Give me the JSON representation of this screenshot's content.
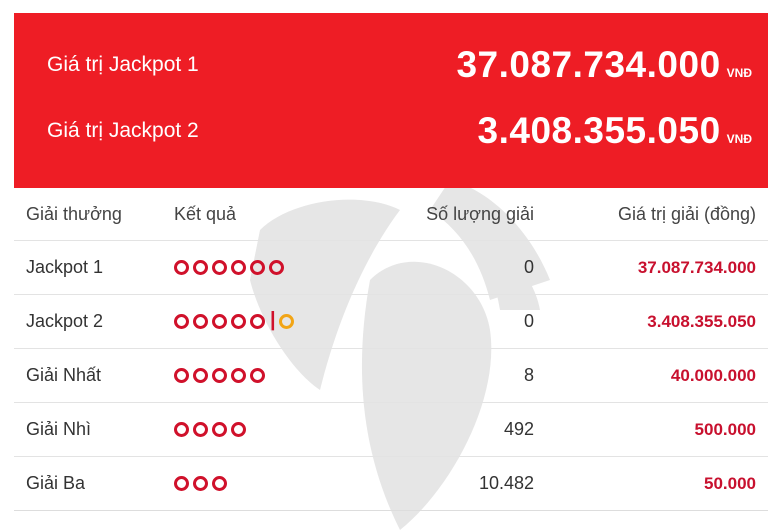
{
  "jackpots": [
    {
      "label": "Giá trị Jackpot 1",
      "amount": "37.087.734.000",
      "unit": "VNĐ"
    },
    {
      "label": "Giá trị Jackpot 2",
      "amount": "3.408.355.050",
      "unit": "VNĐ"
    }
  ],
  "table": {
    "headers": [
      "Giải thưởng",
      "Kết quả",
      "Số lượng giải",
      "Giá trị giải (đồng)"
    ],
    "rows": [
      {
        "prize": "Jackpot 1",
        "count": "0",
        "value": "37.087.734.000"
      },
      {
        "prize": "Jackpot 2",
        "count": "0",
        "value": "3.408.355.050"
      },
      {
        "prize": "Giải Nhất",
        "count": "8",
        "value": "40.000.000"
      },
      {
        "prize": "Giải Nhì",
        "count": "492",
        "value": "500.000"
      },
      {
        "prize": "Giải Ba",
        "count": "10.482",
        "value": "50.000"
      }
    ]
  },
  "colors": {
    "banner": "#ee1d25",
    "ball": "#d0112b",
    "bonus_ball": "#f2a516",
    "value_text": "#c8102e"
  }
}
